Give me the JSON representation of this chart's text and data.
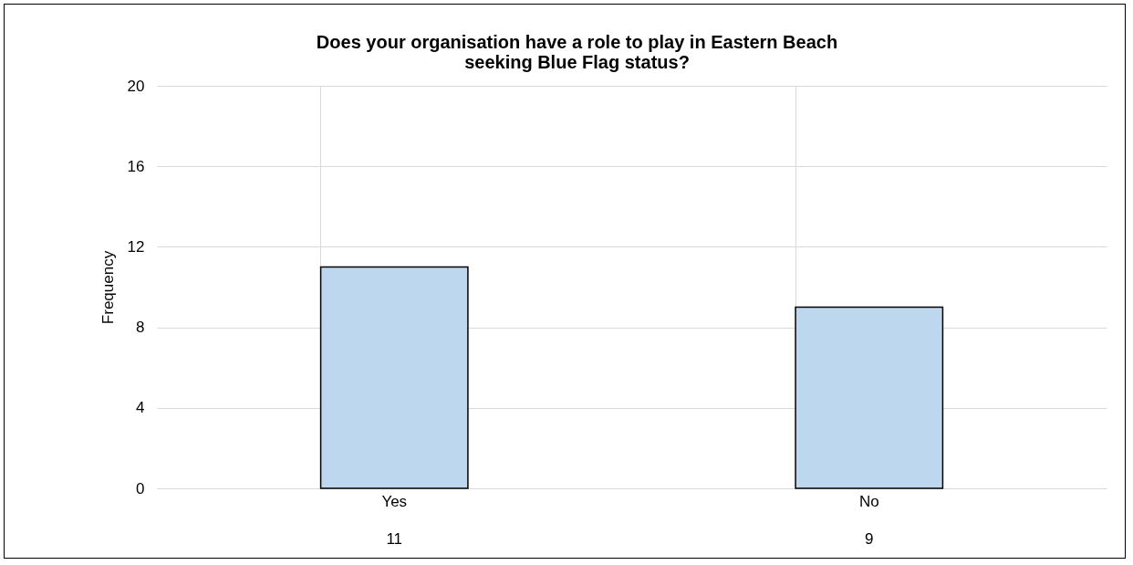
{
  "chart_data": {
    "type": "bar",
    "title": "Does your organisation have a role to play in Eastern Beach seeking Blue Flag status?",
    "ylabel": "Frequency",
    "categories": [
      "Yes",
      "No"
    ],
    "values": [
      11,
      9
    ],
    "color": "#bdd7ee",
    "ylim": [
      0,
      20
    ],
    "yticks": [
      0,
      4,
      8,
      12,
      16,
      20
    ],
    "grid": "y",
    "data_labels": true
  }
}
